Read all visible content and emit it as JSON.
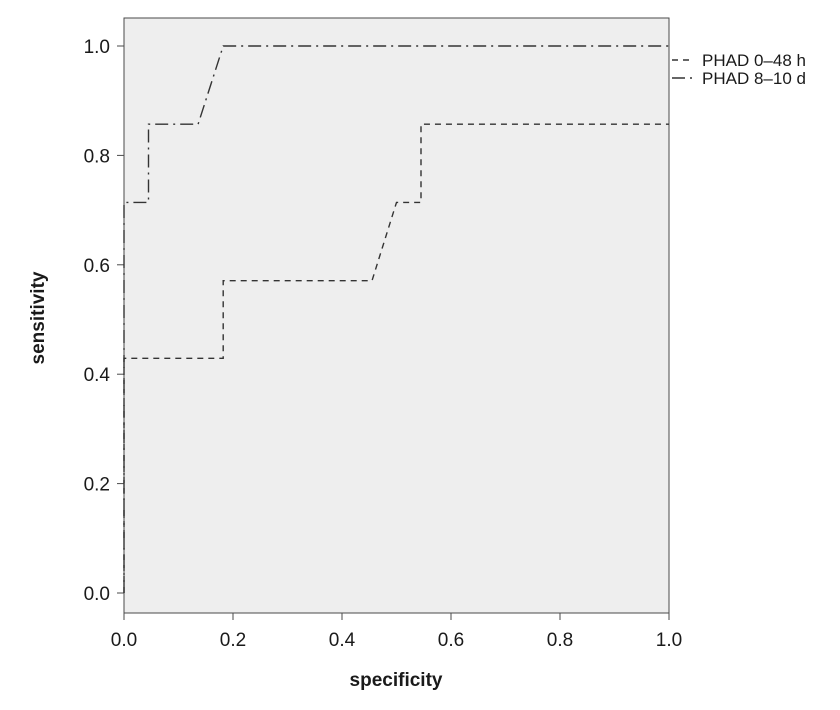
{
  "chart_data": {
    "type": "line",
    "xlabel": "specificity",
    "ylabel": "sensitivity",
    "xlim": [
      0,
      1
    ],
    "ylim": [
      -0.015,
      1.04
    ],
    "x_ticks": [
      "0.0",
      "0.2",
      "0.4",
      "0.6",
      "0.8",
      "1.0"
    ],
    "y_ticks": [
      "0.0",
      "0.2",
      "0.4",
      "0.6",
      "0.8",
      "1.0"
    ],
    "grid": false,
    "legend_position": "right-top",
    "plot_background": "#eeeeee",
    "line_color": "#333333",
    "series": [
      {
        "name": "PHAD 0–48 h",
        "dash": "dashed",
        "points": [
          [
            0,
            0
          ],
          [
            0,
            0.429
          ],
          [
            0.182,
            0.429
          ],
          [
            0.182,
            0.571
          ],
          [
            0.455,
            0.571
          ],
          [
            0.5,
            0.714
          ],
          [
            0.545,
            0.714
          ],
          [
            0.545,
            0.857
          ],
          [
            1.0,
            0.857
          ]
        ]
      },
      {
        "name": "PHAD 8–10 d",
        "dash": "dashdot",
        "points": [
          [
            0,
            0
          ],
          [
            0,
            0.714
          ],
          [
            0.045,
            0.714
          ],
          [
            0.045,
            0.857
          ],
          [
            0.136,
            0.857
          ],
          [
            0.182,
            1.0
          ],
          [
            1.0,
            1.0
          ]
        ]
      }
    ]
  }
}
